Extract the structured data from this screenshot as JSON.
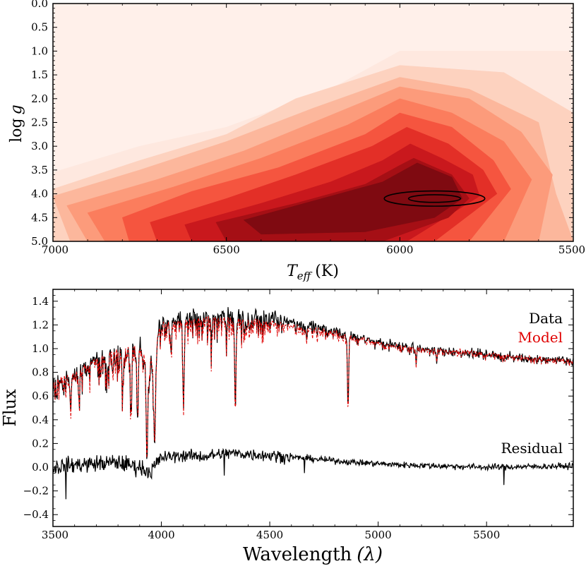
{
  "chart_data": [
    {
      "type": "heatmap",
      "subtype": "filled-contour",
      "title": "",
      "xlabel": "T_eff (K)",
      "xlabel_main": "T",
      "xlabel_sub": "eff",
      "xlabel_unit": "(K)",
      "ylabel": "log g",
      "ylabel_log": "log",
      "ylabel_var": "g",
      "xlim": [
        7000,
        5500
      ],
      "ylim": [
        5.0,
        0.0
      ],
      "xticks": [
        7000,
        6500,
        6000,
        5500
      ],
      "xtick_labels": [
        "7000",
        "6500",
        "6000",
        "5500"
      ],
      "yticks": [
        0.0,
        0.5,
        1.0,
        1.5,
        2.0,
        2.5,
        3.0,
        3.5,
        4.0,
        4.5,
        5.0
      ],
      "ytick_labels": [
        "0.0",
        "0.5",
        "1.0",
        "1.5",
        "2.0",
        "2.5",
        "3.0",
        "3.5",
        "4.0",
        "4.5",
        "5.0"
      ],
      "colormap": "Reds",
      "colors": [
        "#fee8df",
        "#fdd2bf",
        "#fcb79c",
        "#fc9b7b",
        "#fb7d5d",
        "#f5553f",
        "#e32f27",
        "#c9181d",
        "#a50f15",
        "#7f0a11"
      ],
      "peak": {
        "teff": 5900,
        "logg": 4.1
      },
      "contour_levels": [
        [
          [
            7000,
            5.0
          ],
          [
            7000,
            3.55
          ],
          [
            6750,
            3.0
          ],
          [
            6500,
            2.6
          ],
          [
            6200,
            1.8
          ],
          [
            6000,
            1.0
          ],
          [
            5500,
            1.0
          ],
          [
            5500,
            5.0
          ]
        ],
        [
          [
            7000,
            5.0
          ],
          [
            7000,
            3.9
          ],
          [
            6750,
            3.3
          ],
          [
            6500,
            2.75
          ],
          [
            6300,
            2.0
          ],
          [
            6000,
            1.3
          ],
          [
            5700,
            1.45
          ],
          [
            5500,
            2.3
          ],
          [
            5500,
            5.0
          ]
        ],
        [
          [
            6950,
            5.0
          ],
          [
            7000,
            4.05
          ],
          [
            6750,
            3.5
          ],
          [
            6500,
            2.9
          ],
          [
            6250,
            2.2
          ],
          [
            6000,
            1.55
          ],
          [
            5800,
            1.8
          ],
          [
            5600,
            2.5
          ],
          [
            5550,
            4.0
          ],
          [
            5500,
            5.0
          ]
        ],
        [
          [
            6900,
            5.0
          ],
          [
            6960,
            4.25
          ],
          [
            6700,
            3.7
          ],
          [
            6450,
            3.1
          ],
          [
            6200,
            2.35
          ],
          [
            6000,
            1.75
          ],
          [
            5800,
            2.0
          ],
          [
            5650,
            2.7
          ],
          [
            5560,
            3.6
          ],
          [
            5600,
            5.0
          ]
        ],
        [
          [
            6850,
            5.0
          ],
          [
            6900,
            4.4
          ],
          [
            6650,
            3.85
          ],
          [
            6400,
            3.25
          ],
          [
            6150,
            2.55
          ],
          [
            6000,
            2.0
          ],
          [
            5850,
            2.3
          ],
          [
            5700,
            2.9
          ],
          [
            5620,
            3.7
          ],
          [
            5700,
            5.0
          ]
        ],
        [
          [
            6780,
            5.0
          ],
          [
            6800,
            4.5
          ],
          [
            6600,
            3.95
          ],
          [
            6350,
            3.45
          ],
          [
            6100,
            2.75
          ],
          [
            6000,
            2.3
          ],
          [
            5850,
            2.6
          ],
          [
            5730,
            3.3
          ],
          [
            5680,
            3.9
          ],
          [
            5800,
            5.0
          ]
        ],
        [
          [
            6700,
            5.0
          ],
          [
            6720,
            4.6
          ],
          [
            6500,
            4.1
          ],
          [
            6300,
            3.6
          ],
          [
            6080,
            3.0
          ],
          [
            5980,
            2.6
          ],
          [
            5860,
            2.95
          ],
          [
            5760,
            3.5
          ],
          [
            5720,
            4.0
          ],
          [
            5900,
            5.0
          ]
        ],
        [
          [
            6600,
            5.0
          ],
          [
            6620,
            4.65
          ],
          [
            6400,
            4.2
          ],
          [
            6200,
            3.75
          ],
          [
            6050,
            3.3
          ],
          [
            5970,
            2.95
          ],
          [
            5880,
            3.25
          ],
          [
            5790,
            3.6
          ],
          [
            5770,
            4.05
          ],
          [
            5980,
            5.0
          ]
        ],
        [
          [
            6500,
            5.0
          ],
          [
            6530,
            4.6
          ],
          [
            6300,
            4.2
          ],
          [
            6100,
            3.8
          ],
          [
            6000,
            3.4
          ],
          [
            5960,
            3.25
          ],
          [
            5850,
            3.6
          ],
          [
            5800,
            4.1
          ],
          [
            5860,
            4.5
          ],
          [
            6050,
            5.0
          ]
        ],
        [
          [
            6400,
            4.85
          ],
          [
            6450,
            4.55
          ],
          [
            6250,
            4.15
          ],
          [
            6050,
            3.75
          ],
          [
            5950,
            3.35
          ],
          [
            5850,
            3.65
          ],
          [
            5820,
            4.1
          ],
          [
            5900,
            4.5
          ],
          [
            6100,
            4.8
          ]
        ]
      ],
      "ellipses": [
        {
          "teff": 5900,
          "logg": 4.1,
          "half_width_teff": 145,
          "half_height_logg": 0.16
        },
        {
          "teff": 5900,
          "logg": 4.1,
          "half_width_teff": 75,
          "half_height_logg": 0.08
        }
      ]
    },
    {
      "type": "line",
      "title": "",
      "xlabel": "Wavelength (λ)",
      "xlabel_word": "Wavelength",
      "xlabel_symbol": "(λ)",
      "ylabel": "Flux",
      "xlim": [
        3500,
        5900
      ],
      "ylim": [
        -0.5,
        1.5
      ],
      "xticks": [
        3500,
        4000,
        4500,
        5000,
        5500
      ],
      "xtick_labels": [
        "3500",
        "4000",
        "4500",
        "5000",
        "5500"
      ],
      "yticks": [
        -0.4,
        -0.2,
        0.0,
        0.2,
        0.4,
        0.6,
        0.8,
        1.0,
        1.2,
        1.4
      ],
      "ytick_labels": [
        "−0.4",
        "−0.2",
        "0.0",
        "0.2",
        "0.4",
        "0.6",
        "0.8",
        "1.0",
        "1.2",
        "1.4"
      ],
      "series": [
        {
          "name": "Data",
          "color": "#000000",
          "style": "solid",
          "noise": 0.05
        },
        {
          "name": "Model",
          "color": "#e00000",
          "style": "dashed",
          "noise": 0.015
        },
        {
          "name": "Residual",
          "color": "#000000",
          "style": "solid",
          "noise": 0.045
        }
      ],
      "continuum_knots": [
        [
          3500,
          0.73
        ],
        [
          3600,
          0.8
        ],
        [
          3700,
          0.92
        ],
        [
          3800,
          1.0
        ],
        [
          3900,
          1.02
        ],
        [
          3950,
          0.92
        ],
        [
          4000,
          1.22
        ],
        [
          4100,
          1.24
        ],
        [
          4200,
          1.27
        ],
        [
          4300,
          1.26
        ],
        [
          4500,
          1.23
        ],
        [
          4650,
          1.18
        ],
        [
          4800,
          1.15
        ],
        [
          4850,
          1.12
        ],
        [
          5000,
          1.05
        ],
        [
          5200,
          1.0
        ],
        [
          5400,
          0.98
        ],
        [
          5600,
          0.94
        ],
        [
          5900,
          0.9
        ]
      ],
      "absorption_lines": [
        {
          "wave": 3934,
          "depth": 0.85,
          "width": 4
        },
        {
          "wave": 3969,
          "depth": 0.82,
          "width": 4
        },
        {
          "wave": 4102,
          "depth": 0.6,
          "width": 3
        },
        {
          "wave": 4341,
          "depth": 0.62,
          "width": 3
        },
        {
          "wave": 4861,
          "depth": 0.58,
          "width": 3
        },
        {
          "wave": 3820,
          "depth": 0.3,
          "width": 3
        },
        {
          "wave": 3860,
          "depth": 0.45,
          "width": 3
        },
        {
          "wave": 3890,
          "depth": 0.5,
          "width": 3
        },
        {
          "wave": 3750,
          "depth": 0.25,
          "width": 3
        },
        {
          "wave": 3580,
          "depth": 0.3,
          "width": 3
        },
        {
          "wave": 3620,
          "depth": 0.25,
          "width": 3
        },
        {
          "wave": 4230,
          "depth": 0.2,
          "width": 2
        },
        {
          "wave": 4300,
          "depth": 0.18,
          "width": 2
        },
        {
          "wave": 4045,
          "depth": 0.2,
          "width": 2
        },
        {
          "wave": 5175,
          "depth": 0.15,
          "width": 2
        },
        {
          "wave": 5270,
          "depth": 0.1,
          "width": 2
        },
        {
          "wave": 4385,
          "depth": 0.12,
          "width": 2
        },
        {
          "wave": 4670,
          "depth": 0.1,
          "width": 2
        }
      ],
      "residual_knots": [
        [
          3500,
          0.0
        ],
        [
          3600,
          0.02
        ],
        [
          3700,
          0.03
        ],
        [
          3800,
          0.04
        ],
        [
          3900,
          0.0
        ],
        [
          3950,
          -0.04
        ],
        [
          4000,
          0.08
        ],
        [
          4100,
          0.1
        ],
        [
          4200,
          0.09
        ],
        [
          4300,
          0.12
        ],
        [
          4500,
          0.1
        ],
        [
          4700,
          0.07
        ],
        [
          4900,
          0.04
        ],
        [
          5100,
          0.02
        ],
        [
          5300,
          0.01
        ],
        [
          5500,
          0.0
        ],
        [
          5900,
          0.01
        ]
      ],
      "residual_spikes": [
        {
          "wave": 3560,
          "value": -0.27
        },
        {
          "wave": 5580,
          "value": -0.15
        },
        {
          "wave": 4660,
          "value": -0.05
        },
        {
          "wave": 4290,
          "value": -0.07
        }
      ]
    }
  ]
}
